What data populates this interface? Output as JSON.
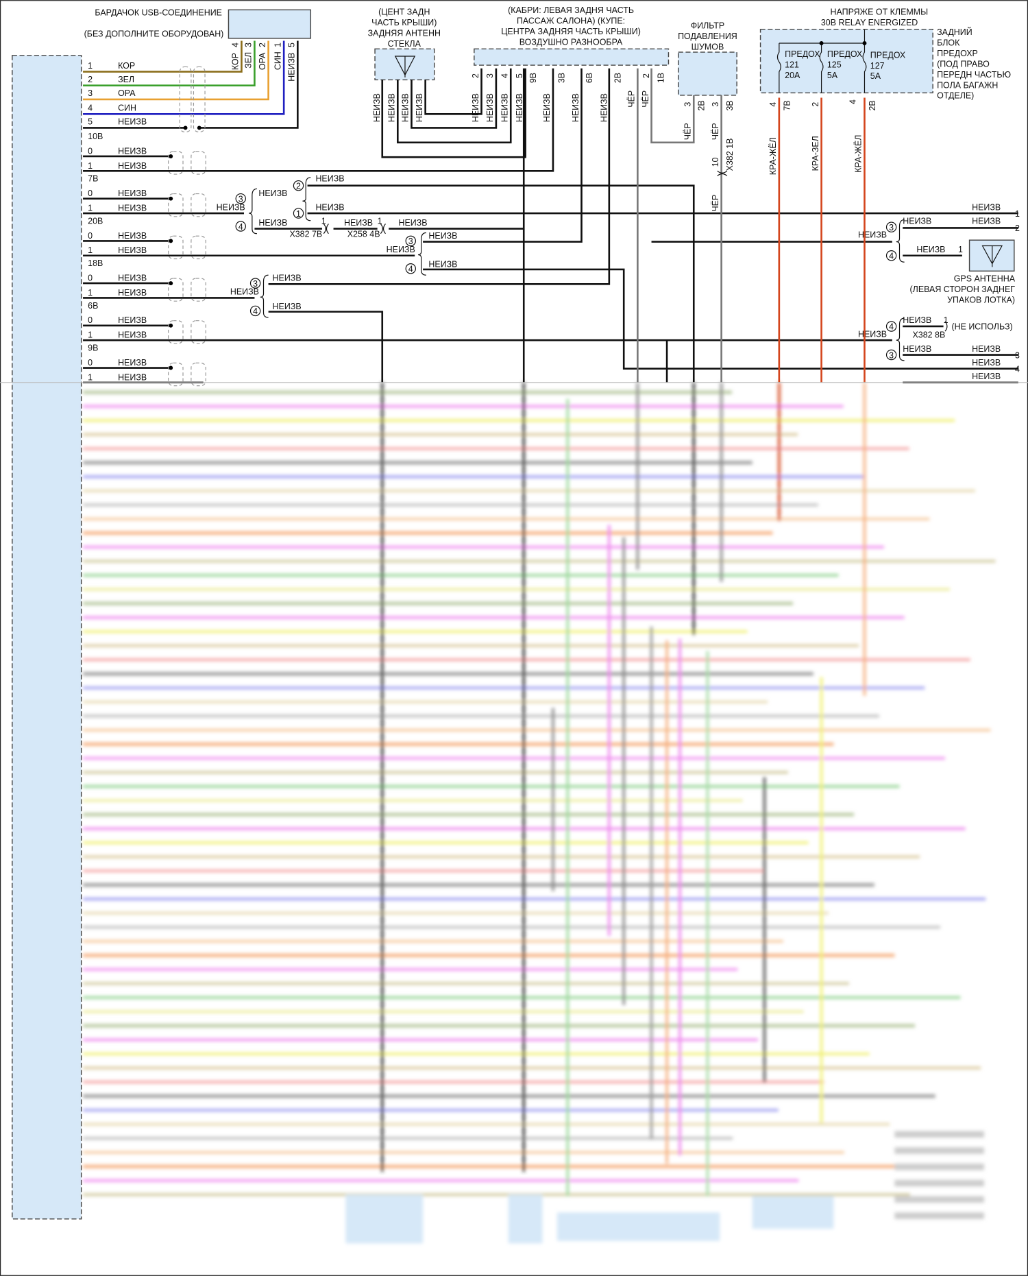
{
  "colors": {
    "module_fill": "#d6e8f8",
    "brown": "#8b6d1a",
    "green": "#3aa02c",
    "orange": "#e8a030",
    "blue": "#2020c0",
    "black": "#111111",
    "gray": "#777777",
    "red_yellow": "#d4451c"
  },
  "n": {
    "0": "0",
    "1": "1",
    "2": "2",
    "3": "3",
    "4": "4",
    "5": "5",
    "10": "10"
  },
  "wire": {
    "unknown": "НЕИЗВ",
    "black": "ЧЁР",
    "brown": "КОР",
    "green": "ЗЕЛ",
    "orange": "ОРА",
    "blue": "СИН",
    "red_yellow": "КРА-ЖЁЛ",
    "red_green": "КРА-ЗЕЛ"
  },
  "usb": {
    "title": "БАРДАЧОК USB-СОЕДИНЕНИЕ",
    "subtitle": "(БЕЗ ДОПОЛНИТЕ ОБОРУДОВАН)"
  },
  "groups": {
    "g10": "10В",
    "g7": "7В",
    "g20": "20В",
    "g18": "18В",
    "g6": "6В",
    "g9": "9В"
  },
  "rear_antenna": {
    "lines": [
      "(ЦЕНТ ЗАДН",
      "ЧАСТЬ КРЫШИ)",
      "ЗАДНЯЯ АНТЕНН",
      "СТЕКЛА"
    ]
  },
  "diversity": {
    "lines": [
      "(КАБРИ: ЛЕВАЯ ЗАДНЯ ЧАСТЬ",
      "ПАССАЖ САЛОНА) (КУПЕ:",
      "ЦЕНТРА ЗАДНЯЯ ЧАСТЬ КРЫШИ)",
      "ВОЗДУШНО РАЗНООБРА"
    ],
    "pins": {
      "p9": "9В",
      "p3": "3В",
      "p6": "6В",
      "p2": "2В",
      "p1": "1В"
    }
  },
  "noise_filter": {
    "lines": [
      "ФИЛЬТР",
      "ПОДАВЛЕНИЯ",
      "ШУМОВ"
    ],
    "pin_a": "2В",
    "pin_b": "3В"
  },
  "fuse_block": {
    "supply": [
      "НАПРЯЖЕ ОТ КЛЕММЫ",
      "30В RELAY ENERGIZED"
    ],
    "lines": [
      "ЗАДНИЙ",
      "БЛОК",
      "ПРЕДОХР",
      "(ПОД ПРАВО",
      "ПЕРЕДН ЧАСТЬЮ",
      "ПОЛА БАГАЖН",
      "ОТДЕЛЕ)"
    ],
    "fuses": [
      {
        "name": "ПРЕДОХ",
        "number": "121",
        "rating": "20A"
      },
      {
        "name": "ПРЕДОХ",
        "number": "125",
        "rating": "5A"
      },
      {
        "name": "ПРЕДОХ",
        "number": "127",
        "rating": "5A"
      }
    ],
    "pins": {
      "a": "7В",
      "c": "2В"
    }
  },
  "connectors": {
    "x382_7": "X382 7В",
    "x258_4": "X258 4В",
    "x382_1": "X382 1В",
    "x382_8": "X382 8В"
  },
  "gps": {
    "lines": [
      "GPS АНТЕННА",
      "(ЛЕВАЯ СТОРОН ЗАДНЕГ",
      "УПАКОВ ЛОТКА)"
    ],
    "not_used": "(НЕ ИСПОЛЬЗ)"
  }
}
